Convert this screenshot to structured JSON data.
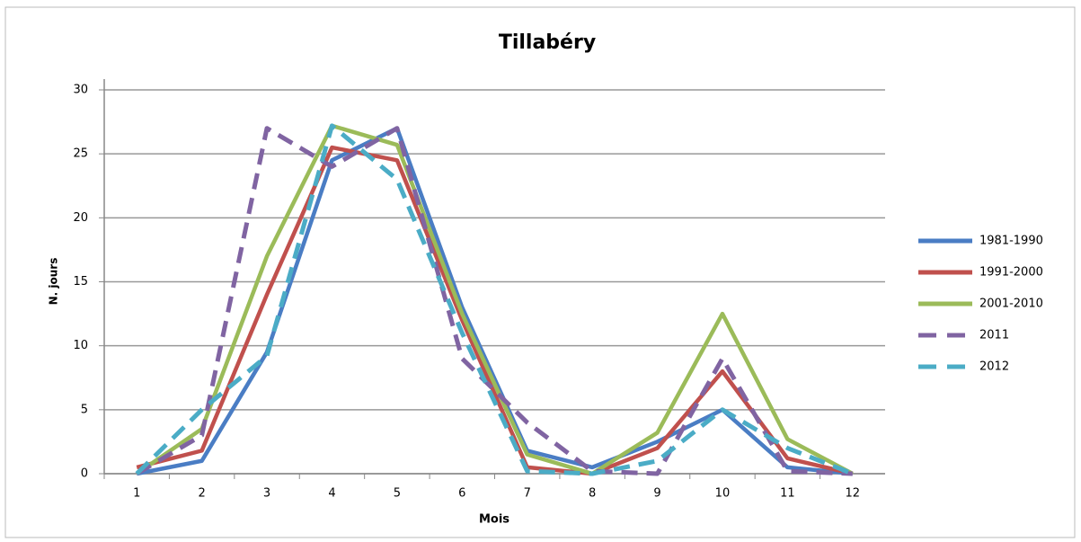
{
  "chart_data": {
    "type": "line",
    "title": "Tillabéry",
    "x_label": "Mois",
    "y_label": "N. jours",
    "categories": [
      "1",
      "2",
      "3",
      "4",
      "5",
      "6",
      "7",
      "8",
      "9",
      "10",
      "11",
      "12"
    ],
    "ylim": [
      0,
      30
    ],
    "yticks": [
      0,
      5,
      10,
      15,
      20,
      25,
      30
    ],
    "grid": true,
    "legend": "right",
    "series": [
      {
        "name": "1981-1990",
        "color": "#4a7dc4",
        "dashed": false,
        "values": [
          0,
          1,
          9.5,
          24.5,
          27,
          13,
          1.8,
          0.5,
          2.5,
          5,
          0.5,
          0
        ]
      },
      {
        "name": "1991-2000",
        "color": "#c0504d",
        "dashed": false,
        "values": [
          0.5,
          1.8,
          14,
          25.5,
          24.5,
          12,
          0.5,
          0,
          2,
          8,
          1.2,
          0
        ]
      },
      {
        "name": "2001-2010",
        "color": "#9bbb59",
        "dashed": false,
        "values": [
          0,
          3.5,
          17,
          27.2,
          25.7,
          12.5,
          1.5,
          0,
          3.2,
          12.5,
          2.7,
          0
        ]
      },
      {
        "name": "2011",
        "color": "#8064a2",
        "dashed": true,
        "values": [
          0,
          3,
          27,
          24,
          27,
          9,
          4,
          0.2,
          0,
          9,
          0.2,
          0
        ]
      },
      {
        "name": "2012",
        "color": "#4bacc6",
        "dashed": true,
        "values": [
          0,
          5,
          9.2,
          27.2,
          23,
          11,
          0.2,
          0,
          1,
          5,
          2,
          0
        ]
      }
    ]
  }
}
